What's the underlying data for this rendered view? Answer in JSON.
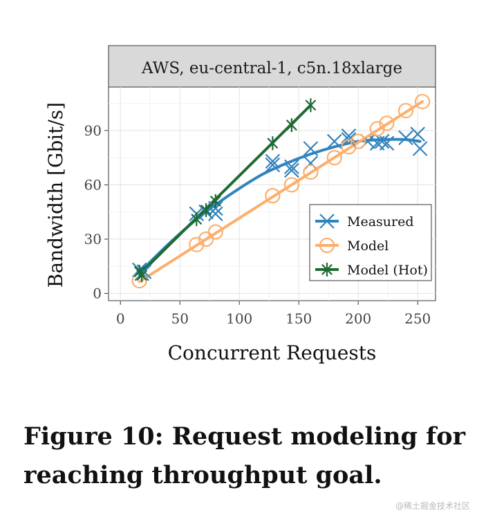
{
  "chart_data": {
    "type": "line",
    "facet_title": "AWS, eu-central-1, c5n.18xlarge",
    "xlabel": "Concurrent Requests",
    "ylabel": "Bandwidth [Gbit/s]",
    "xlim": [
      -10,
      265
    ],
    "ylim": [
      -4,
      114
    ],
    "xticks": [
      0,
      50,
      100,
      150,
      200,
      250
    ],
    "yticks": [
      0,
      30,
      60,
      90
    ],
    "grid": true,
    "legend_position": "bottom-right",
    "series": [
      {
        "name": "Measured",
        "color": "#3182bd",
        "marker": "x",
        "points": [
          [
            16,
            13
          ],
          [
            18,
            11
          ],
          [
            20,
            12
          ],
          [
            64,
            44
          ],
          [
            72,
            45
          ],
          [
            80,
            47
          ],
          [
            80,
            44
          ],
          [
            128,
            73
          ],
          [
            128,
            71
          ],
          [
            144,
            70
          ],
          [
            144,
            68
          ],
          [
            160,
            80
          ],
          [
            160,
            72
          ],
          [
            180,
            84
          ],
          [
            192,
            87
          ],
          [
            192,
            85
          ],
          [
            208,
            84
          ],
          [
            216,
            83
          ],
          [
            220,
            84
          ],
          [
            224,
            83
          ],
          [
            240,
            86
          ],
          [
            250,
            88
          ],
          [
            252,
            80
          ]
        ],
        "fit": [
          [
            16,
            11.5
          ],
          [
            40,
            27
          ],
          [
            64,
            41
          ],
          [
            80,
            49
          ],
          [
            100,
            58
          ],
          [
            120,
            66
          ],
          [
            140,
            72
          ],
          [
            160,
            77
          ],
          [
            180,
            81
          ],
          [
            200,
            84
          ],
          [
            220,
            85
          ],
          [
            240,
            85
          ],
          [
            252,
            84
          ]
        ]
      },
      {
        "name": "Model",
        "color": "#fdae6b",
        "marker": "o",
        "points": [
          [
            16,
            7
          ],
          [
            64,
            27
          ],
          [
            72,
            30
          ],
          [
            80,
            34
          ],
          [
            128,
            54
          ],
          [
            144,
            60
          ],
          [
            160,
            67
          ],
          [
            180,
            75
          ],
          [
            192,
            81
          ],
          [
            200,
            84
          ],
          [
            216,
            91
          ],
          [
            224,
            94
          ],
          [
            240,
            101
          ],
          [
            254,
            106
          ]
        ],
        "line": [
          [
            16,
            6.5
          ],
          [
            254,
            106
          ]
        ]
      },
      {
        "name": "Model (Hot)",
        "color": "#1d6b33",
        "marker": "asterisk",
        "points": [
          [
            16,
            12
          ],
          [
            18,
            10
          ],
          [
            64,
            41
          ],
          [
            72,
            46
          ],
          [
            80,
            51
          ],
          [
            128,
            83
          ],
          [
            144,
            93
          ],
          [
            160,
            104
          ]
        ],
        "line": [
          [
            16,
            10.5
          ],
          [
            160,
            104
          ]
        ]
      }
    ]
  },
  "caption": "Figure 10: Request modeling for reaching throughput goal.",
  "watermark": "@稀土掘金技术社区"
}
